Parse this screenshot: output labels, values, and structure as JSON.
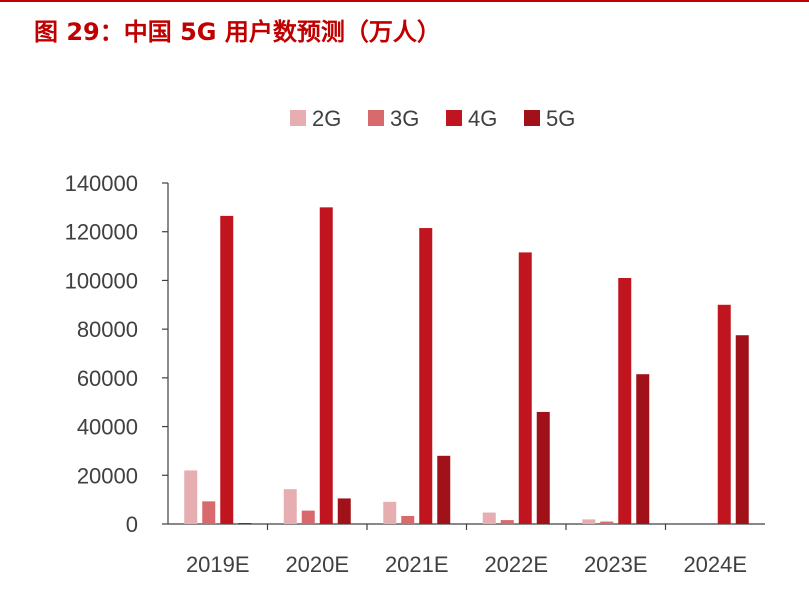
{
  "figure": {
    "title": "图 29：中国 5G 用户数预测（万人）"
  },
  "chart_data": {
    "type": "bar",
    "title": "",
    "xlabel": "",
    "ylabel": "",
    "categories": [
      "2019E",
      "2020E",
      "2021E",
      "2022E",
      "2023E",
      "2024E"
    ],
    "series": [
      {
        "name": "2G",
        "color": "#e6aeb0",
        "values": [
          22000,
          14300,
          9100,
          4700,
          1900,
          0
        ]
      },
      {
        "name": "3G",
        "color": "#d8696c",
        "values": [
          9300,
          5500,
          3300,
          1600,
          1000,
          0
        ]
      },
      {
        "name": "4G",
        "color": "#c0141f",
        "values": [
          126500,
          130000,
          121500,
          111500,
          101000,
          90000
        ]
      },
      {
        "name": "5G",
        "color": "#a0111a",
        "values": [
          400,
          10500,
          28000,
          46000,
          61500,
          77500
        ]
      }
    ],
    "ylim": [
      0,
      140000
    ],
    "yticks": [
      0,
      20000,
      40000,
      60000,
      80000,
      100000,
      120000,
      140000
    ],
    "ytick_labels": [
      "0",
      "20000",
      "40000",
      "60000",
      "80000",
      "100000",
      "120000",
      "140000"
    ],
    "legend": "top",
    "grid": false
  }
}
